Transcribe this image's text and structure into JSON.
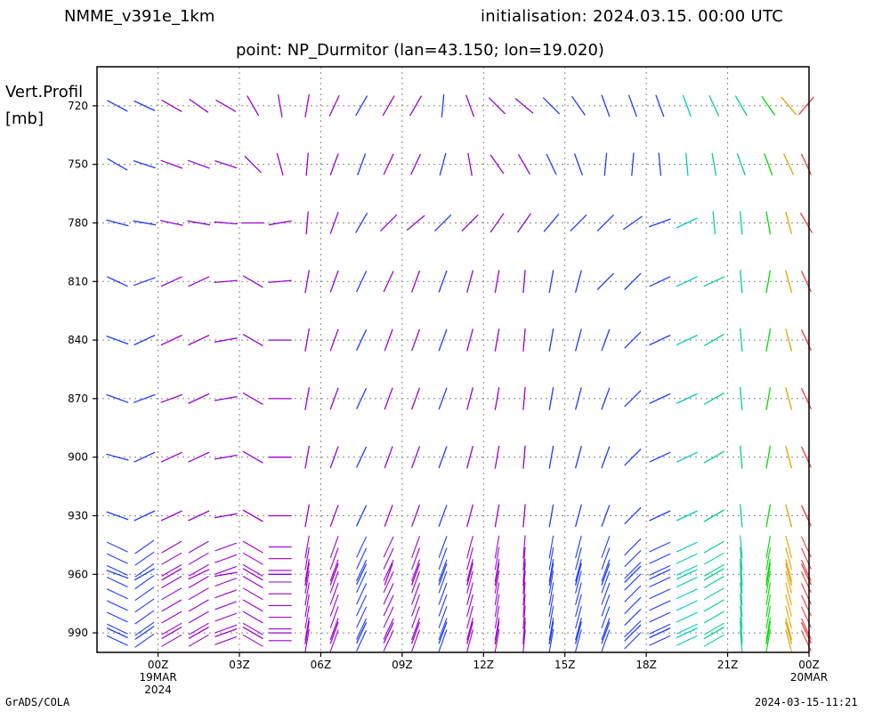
{
  "header": {
    "model": "NMME_v391e_1km",
    "initialisation": "initialisation: 2024.03.15. 00:00 UTC",
    "point": "point: NP_Durmitor (lan=43.150; lon=19.020)"
  },
  "y_title": {
    "line1": "Vert.Profil",
    "line2": "[mb]"
  },
  "footer": {
    "left": "GrADS/COLA",
    "right": "2024-03-15-11:21"
  },
  "chart_data": {
    "type": "wind-barb-profile",
    "x_axis": {
      "unit": "hours from 19MAR 00Z",
      "range": [
        -2.25,
        24
      ],
      "ticks": [
        {
          "x": 0,
          "label": "00Z",
          "sub1": "19MAR",
          "sub2": "2024"
        },
        {
          "x": 3,
          "label": "03Z"
        },
        {
          "x": 6,
          "label": "06Z"
        },
        {
          "x": 9,
          "label": "09Z"
        },
        {
          "x": 12,
          "label": "12Z"
        },
        {
          "x": 15,
          "label": "15Z"
        },
        {
          "x": 18,
          "label": "18Z"
        },
        {
          "x": 21,
          "label": "21Z"
        },
        {
          "x": 24,
          "label": "00Z",
          "sub1": "20MAR"
        }
      ],
      "grid": true
    },
    "y_axis": {
      "unit": "mb",
      "range": [
        700,
        1000
      ],
      "inverted": true,
      "ticks": [
        720,
        750,
        780,
        810,
        840,
        870,
        900,
        930,
        960,
        990
      ],
      "grid": true
    },
    "colors": {
      "purple": "#9b00d3",
      "blue": "#1e3cff",
      "cyan": "#00c8c8",
      "teal": "#00d28c",
      "green": "#00dc00",
      "orange": "#e6a000",
      "red": "#f03c3c"
    },
    "time_steps": [
      {
        "x": -1.5,
        "color": "blue",
        "shaft": [
          62,
          60,
          75,
          65,
          70,
          70,
          75,
          70,
          70,
          65
        ]
      },
      {
        "x": -0.5,
        "color": "blue",
        "shaft": [
          65,
          72,
          80,
          110,
          115,
          110,
          115,
          115,
          120,
          125
        ]
      },
      {
        "x": 0.5,
        "color": "purple",
        "shaft": [
          60,
          70,
          78,
          115,
          115,
          110,
          115,
          115,
          120,
          120
        ]
      },
      {
        "x": 1.5,
        "color": "purple",
        "shaft": [
          55,
          70,
          80,
          115,
          115,
          115,
          115,
          115,
          115,
          120
        ]
      },
      {
        "x": 2.5,
        "color": "purple",
        "shaft": [
          60,
          72,
          85,
          95,
          100,
          100,
          100,
          100,
          100,
          110
        ]
      },
      {
        "x": 3.5,
        "color": "purple",
        "shaft": [
          30,
          45,
          90,
          60,
          60,
          60,
          60,
          60,
          60,
          60
        ]
      },
      {
        "x": 4.5,
        "color": "purple",
        "shaft": [
          10,
          15,
          100,
          95,
          90,
          90,
          90,
          90,
          90,
          90
        ]
      },
      {
        "x": 5.5,
        "color": "purple",
        "shaft": [
          -10,
          -5,
          -5,
          -10,
          -10,
          -10,
          -10,
          -10,
          -10,
          -10
        ]
      },
      {
        "x": 6.5,
        "color": "purple",
        "shaft": [
          -25,
          -20,
          -20,
          -20,
          -20,
          -20,
          -20,
          -20,
          -20,
          -20
        ]
      },
      {
        "x": 7.5,
        "color": "blue",
        "shaft": [
          -30,
          -20,
          -30,
          -25,
          -25,
          -25,
          -25,
          -25,
          -25,
          -25
        ]
      },
      {
        "x": 8.5,
        "color": "purple",
        "shaft": [
          -30,
          -25,
          -45,
          -25,
          -20,
          -20,
          -20,
          -20,
          -20,
          -25
        ]
      },
      {
        "x": 9.5,
        "color": "purple",
        "shaft": [
          -30,
          -25,
          -50,
          -20,
          -20,
          -20,
          -20,
          -20,
          -20,
          -20
        ]
      },
      {
        "x": 10.5,
        "color": "blue",
        "shaft": [
          -5,
          -15,
          -45,
          -20,
          -20,
          -20,
          -20,
          -20,
          -20,
          -20
        ]
      },
      {
        "x": 11.5,
        "color": "purple",
        "shaft": [
          20,
          10,
          -45,
          -15,
          -15,
          -15,
          -15,
          -15,
          -15,
          -15
        ]
      },
      {
        "x": 12.5,
        "color": "purple",
        "shaft": [
          45,
          35,
          -35,
          -10,
          -10,
          -10,
          -10,
          -10,
          -10,
          -10
        ]
      },
      {
        "x": 13.5,
        "color": "purple",
        "shaft": [
          50,
          30,
          -35,
          -5,
          -5,
          -5,
          -5,
          -5,
          -5,
          -5
        ]
      },
      {
        "x": 14.5,
        "color": "blue",
        "shaft": [
          45,
          25,
          -40,
          -10,
          -10,
          -10,
          -10,
          -10,
          -10,
          -10
        ]
      },
      {
        "x": 15.5,
        "color": "blue",
        "shaft": [
          35,
          20,
          -45,
          -15,
          -15,
          -15,
          -15,
          -15,
          -15,
          -15
        ]
      },
      {
        "x": 16.5,
        "color": "blue",
        "shaft": [
          20,
          -5,
          -45,
          -45,
          -20,
          -20,
          -20,
          -20,
          -20,
          -20
        ]
      },
      {
        "x": 17.5,
        "color": "blue",
        "shaft": [
          20,
          -5,
          -55,
          -45,
          -45,
          -45,
          -45,
          -45,
          -45,
          -45
        ]
      },
      {
        "x": 18.5,
        "color": "blue",
        "shaft": [
          20,
          5,
          -70,
          -65,
          -65,
          -65,
          -65,
          -65,
          -65,
          -65
        ]
      },
      {
        "x": 19.5,
        "color": "cyan",
        "shaft": [
          20,
          5,
          -65,
          -65,
          -65,
          -65,
          -65,
          -65,
          -65,
          -65
        ]
      },
      {
        "x": 20.5,
        "color": "teal",
        "shaft": [
          25,
          10,
          5,
          -65,
          -60,
          -60,
          -60,
          -60,
          -60,
          -60
        ]
      },
      {
        "x": 21.5,
        "color": "teal",
        "shaft": [
          30,
          20,
          5,
          5,
          5,
          5,
          5,
          5,
          5,
          5
        ]
      },
      {
        "x": 22.5,
        "color": "green",
        "shaft": [
          35,
          20,
          10,
          -10,
          -10,
          -10,
          -10,
          -10,
          -10,
          -10
        ]
      },
      {
        "x": 23.25,
        "color": "orange",
        "shaft": [
          40,
          25,
          15,
          15,
          15,
          15,
          15,
          15,
          15,
          15
        ]
      },
      {
        "x": 23.9,
        "color": "red",
        "shaft": [
          -40,
          25,
          30,
          25,
          25,
          25,
          25,
          25,
          25,
          25
        ]
      }
    ]
  }
}
